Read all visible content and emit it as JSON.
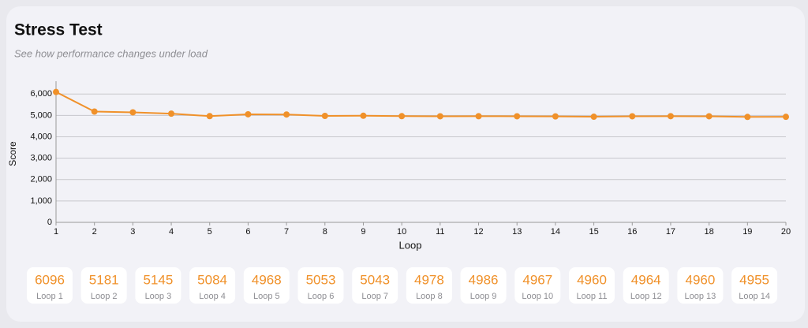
{
  "chart_data": {
    "type": "line",
    "title": "Stress Test",
    "subtitle": "See how performance changes under load",
    "x_label": "Loop",
    "y_label": "Score",
    "x": [
      1,
      2,
      3,
      4,
      5,
      6,
      7,
      8,
      9,
      10,
      11,
      12,
      13,
      14,
      15,
      16,
      17,
      18,
      19,
      20
    ],
    "values": [
      6096,
      5181,
      5145,
      5084,
      4968,
      5053,
      5043,
      4978,
      4986,
      4967,
      4960,
      4964,
      4960,
      4955,
      4940,
      4960,
      4965,
      4960,
      4930,
      4935
    ],
    "color": "#f0912a",
    "xlim": [
      1,
      20
    ],
    "xticks": [
      1,
      2,
      3,
      4,
      5,
      6,
      7,
      8,
      9,
      10,
      11,
      12,
      13,
      14,
      15,
      16,
      17,
      18,
      19,
      20
    ],
    "ylim": [
      0,
      6600
    ],
    "yticks": [
      0,
      {
        "value": 1000,
        "label": "1,000"
      },
      {
        "value": 2000,
        "label": "2,000"
      },
      {
        "value": 3000,
        "label": "3,000"
      },
      {
        "value": 4000,
        "label": "4,000"
      },
      {
        "value": 5000,
        "label": "5,000"
      },
      {
        "value": 6000,
        "label": "6,000"
      }
    ],
    "grid": true,
    "card_labels": [
      "Loop 1",
      "Loop 2",
      "Loop 3",
      "Loop 4",
      "Loop 5",
      "Loop 6",
      "Loop 7",
      "Loop 8",
      "Loop 9",
      "Loop 10",
      "Loop 11",
      "Loop 12",
      "Loop 13",
      "Loop 14"
    ]
  }
}
